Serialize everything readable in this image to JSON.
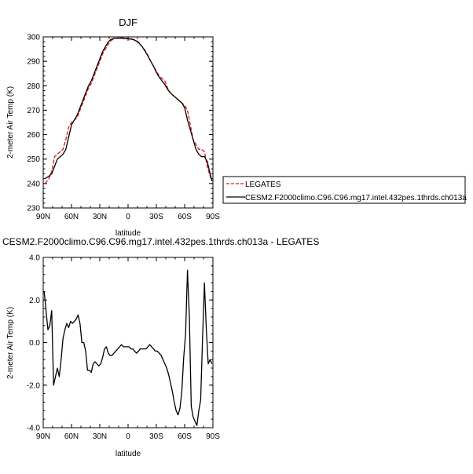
{
  "colors": {
    "legates": "#e01515",
    "cesm": "#000000",
    "axis": "#000000",
    "background": "#ffffff"
  },
  "chart_data": [
    {
      "type": "line",
      "title": "DJF",
      "xlabel": "latitude",
      "ylabel": "2-meter Air Temp (K)",
      "x_tick_labels": [
        "90N",
        "60N",
        "30N",
        "0",
        "30S",
        "60S",
        "90S"
      ],
      "x_tick_values": [
        -90,
        -60,
        -30,
        0,
        30,
        60,
        90
      ],
      "xlim": [
        -90,
        90
      ],
      "y_tick_labels": [
        "230",
        "240",
        "250",
        "260",
        "270",
        "280",
        "290",
        "300"
      ],
      "y_tick_values": [
        230,
        240,
        250,
        260,
        270,
        280,
        290,
        300
      ],
      "ylim": [
        230,
        300
      ],
      "grid": false,
      "legend_position": "right",
      "series": [
        {
          "name": "LEGATES",
          "color_key": "legates",
          "dash": "dashed",
          "x": [
            -88,
            -84,
            -81,
            -78,
            -75,
            -72,
            -69,
            -66,
            -63,
            -60,
            -57,
            -54,
            -51,
            -48,
            -45,
            -42,
            -39,
            -36,
            -33,
            -30,
            -27,
            -24,
            -21,
            -18,
            -15,
            -12,
            -9,
            -6,
            -3,
            0,
            3,
            6,
            9,
            12,
            15,
            18,
            21,
            24,
            27,
            30,
            33,
            36,
            39,
            42,
            45,
            48,
            51,
            54,
            57,
            60,
            63,
            66,
            69,
            72,
            75,
            78,
            81,
            84,
            87,
            89
          ],
          "y": [
            240,
            242,
            245,
            251,
            252,
            253,
            254,
            258,
            263,
            265,
            266,
            267,
            270,
            273,
            276,
            279,
            281,
            284,
            287,
            290,
            293,
            295,
            297,
            298.5,
            299.2,
            299.5,
            299.6,
            299.6,
            299.5,
            299.4,
            299.3,
            299,
            298.5,
            297.5,
            296,
            294.5,
            292.5,
            290,
            288,
            286,
            284,
            283,
            282,
            279,
            277,
            276,
            275,
            274,
            273,
            272,
            270,
            264,
            258,
            256,
            254,
            254,
            253,
            247,
            243,
            241
          ]
        },
        {
          "name": "CESM2.F2000climo.C96.C96.mg17.intel.432pes.1thrds.ch013a",
          "color_key": "cesm",
          "dash": "solid",
          "x": [
            -88,
            -84,
            -81,
            -78,
            -75,
            -72,
            -69,
            -66,
            -63,
            -60,
            -57,
            -54,
            -51,
            -48,
            -45,
            -42,
            -39,
            -36,
            -33,
            -30,
            -27,
            -24,
            -21,
            -18,
            -15,
            -12,
            -9,
            -6,
            -3,
            0,
            3,
            6,
            9,
            12,
            15,
            18,
            21,
            24,
            27,
            30,
            33,
            36,
            39,
            42,
            45,
            48,
            51,
            54,
            57,
            60,
            63,
            66,
            69,
            72,
            75,
            78,
            81,
            84,
            87,
            89
          ],
          "y": [
            242,
            243,
            244,
            247,
            250,
            251,
            252,
            254,
            259,
            264,
            266,
            268,
            271,
            274,
            277,
            280,
            282,
            285,
            288,
            291,
            294,
            296,
            298,
            299,
            299.4,
            299.5,
            299.5,
            299.4,
            299.3,
            299.2,
            299.1,
            298.8,
            298.2,
            297.3,
            296,
            294.2,
            292.2,
            290,
            288,
            285.5,
            283.5,
            282,
            280.5,
            278.5,
            277,
            276,
            275,
            274,
            273,
            271,
            266,
            262,
            258,
            254,
            252,
            251,
            251,
            249,
            244,
            241
          ]
        }
      ]
    },
    {
      "type": "line",
      "title": "CESM2.F2000climo.C96.C96.mg17.intel.432pes.1thrds.ch013a - LEGATES",
      "xlabel": "latitude",
      "ylabel": "2-meter Air Temp (K)",
      "x_tick_labels": [
        "90N",
        "60N",
        "30N",
        "0",
        "30S",
        "60S",
        "90S"
      ],
      "x_tick_values": [
        -90,
        -60,
        -30,
        0,
        30,
        60,
        90
      ],
      "xlim": [
        -90,
        90
      ],
      "y_tick_labels": [
        "4.0",
        "2.0",
        "0.0",
        "-2.0",
        "-4.0"
      ],
      "y_tick_values": [
        4,
        2,
        0,
        -2,
        -4
      ],
      "ylim": [
        -4,
        4
      ],
      "grid": false,
      "series": [
        {
          "color_key": "cesm",
          "dash": "solid",
          "x": [
            -89,
            -87,
            -85,
            -83,
            -81,
            -79,
            -77,
            -75,
            -73,
            -71,
            -69,
            -67,
            -65,
            -63,
            -61,
            -59,
            -57,
            -55,
            -53,
            -51,
            -49,
            -47,
            -45,
            -43,
            -41,
            -39,
            -37,
            -35,
            -33,
            -31,
            -29,
            -27,
            -25,
            -23,
            -21,
            -19,
            -17,
            -15,
            -13,
            -11,
            -9,
            -7,
            -5,
            -3,
            -1,
            1,
            3,
            5,
            7,
            9,
            11,
            13,
            15,
            17,
            19,
            21,
            23,
            25,
            27,
            29,
            31,
            33,
            35,
            37,
            39,
            41,
            43,
            45,
            47,
            49,
            51,
            53,
            55,
            57,
            59,
            61,
            63,
            65,
            67,
            69,
            71,
            73,
            75,
            77,
            79,
            81,
            83,
            85,
            87,
            89
          ],
          "y": [
            2.4,
            1.5,
            0.6,
            0.8,
            1.5,
            -2.0,
            -1.6,
            -1.2,
            -1.6,
            -0.8,
            0.2,
            0.6,
            0.9,
            0.7,
            1.0,
            0.9,
            1.0,
            1.1,
            1.3,
            0.9,
            0.0,
            0.0,
            -0.4,
            -1.3,
            -1.3,
            -1.4,
            -1.0,
            -0.9,
            -1.0,
            -1.1,
            -1.0,
            -0.7,
            -0.3,
            -0.2,
            -0.5,
            -0.6,
            -0.6,
            -0.5,
            -0.4,
            -0.3,
            -0.2,
            -0.1,
            -0.2,
            -0.2,
            -0.2,
            -0.2,
            -0.3,
            -0.3,
            -0.4,
            -0.5,
            -0.4,
            -0.3,
            -0.3,
            -0.3,
            -0.3,
            -0.2,
            -0.1,
            -0.2,
            -0.3,
            -0.4,
            -0.4,
            -0.5,
            -0.6,
            -0.8,
            -1.0,
            -1.2,
            -1.5,
            -1.9,
            -2.3,
            -2.8,
            -3.2,
            -3.4,
            -3.1,
            -2.3,
            -0.7,
            0.4,
            3.4,
            1.2,
            -3.0,
            -3.5,
            -3.7,
            -3.9,
            -3.2,
            -2.7,
            0.2,
            2.8,
            0.6,
            -1.0,
            -0.8,
            -1.0
          ]
        }
      ]
    }
  ]
}
